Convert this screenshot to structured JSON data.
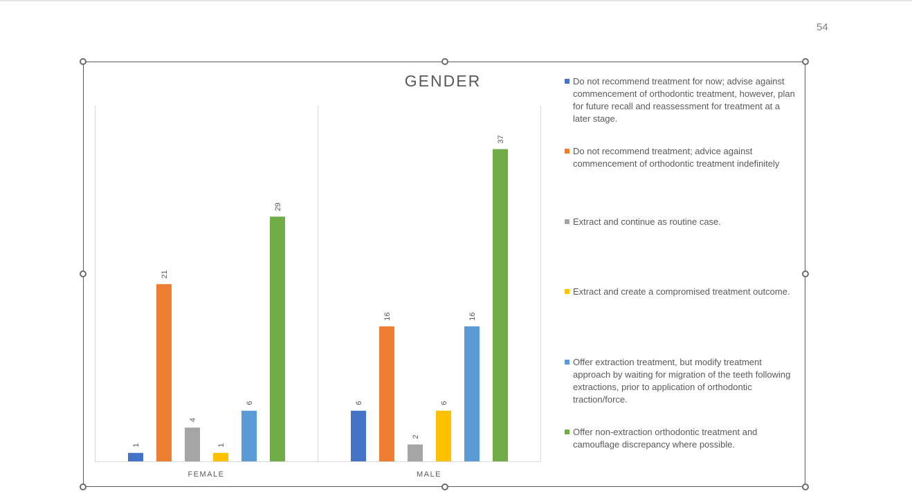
{
  "page": {
    "number": "54"
  },
  "chart_data": {
    "type": "bar",
    "title": "GENDER",
    "categories": [
      "FEMALE",
      "MALE"
    ],
    "ylim": [
      0,
      40
    ],
    "grid": false,
    "legend_position": "right",
    "series": [
      {
        "name": "Do not recommend treatment for now; advise against commencement of orthodontic treatment, however, plan for future recall and reassessment for treatment at a later stage.",
        "color": "#4472c4",
        "values": [
          1,
          6
        ]
      },
      {
        "name": "Do not recommend treatment; advice against commencement of orthodontic treatment indefinitely",
        "color": "#ed7d31",
        "values": [
          21,
          16
        ]
      },
      {
        "name": "Extract and continue as routine case.",
        "color": "#a5a5a5",
        "values": [
          4,
          2
        ]
      },
      {
        "name": "Extract and create a compromised treatment outcome.",
        "color": "#ffc000",
        "values": [
          1,
          6
        ]
      },
      {
        "name": "Offer extraction treatment, but modify treatment approach by waiting for migration of the teeth following extractions, prior to application of orthodontic traction/force.",
        "color": "#5b9bd5",
        "values": [
          6,
          16
        ]
      },
      {
        "name": "Offer non-extraction orthodontic treatment and camouflage discrepancy where possible.",
        "color": "#70ad47",
        "values": [
          29,
          37
        ]
      }
    ]
  }
}
